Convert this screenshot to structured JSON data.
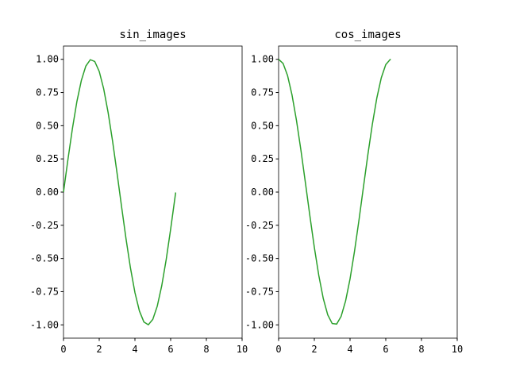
{
  "chart_data": [
    {
      "type": "line",
      "title": "sin_images",
      "x": [
        0,
        0.25,
        0.5,
        0.75,
        1,
        1.25,
        1.5,
        1.75,
        2,
        2.25,
        2.5,
        2.75,
        3,
        3.25,
        3.5,
        3.75,
        4,
        4.25,
        4.5,
        4.75,
        5,
        5.25,
        5.5,
        5.75,
        6,
        6.25,
        6.28
      ],
      "series": [
        {
          "color": "#2ca02c",
          "values": [
            0,
            0.247,
            0.479,
            0.682,
            0.841,
            0.949,
            0.997,
            0.984,
            0.909,
            0.778,
            0.598,
            0.382,
            0.141,
            -0.108,
            -0.351,
            -0.572,
            -0.757,
            -0.895,
            -0.978,
            -0.999,
            -0.959,
            -0.859,
            -0.706,
            -0.508,
            -0.279,
            -0.033,
            -0.003
          ]
        }
      ],
      "xlim": [
        0,
        10
      ],
      "xticks": [
        0,
        2,
        4,
        6,
        8,
        10
      ],
      "ylim": [
        -1.1,
        1.1
      ],
      "yticks": [
        {
          "value": -1,
          "label": "-1.00"
        },
        {
          "value": -0.75,
          "label": "-0.75"
        },
        {
          "value": -0.5,
          "label": "-0.50"
        },
        {
          "value": -0.25,
          "label": "-0.25"
        },
        {
          "value": 0,
          "label": "0.00"
        },
        {
          "value": 0.25,
          "label": "0.25"
        },
        {
          "value": 0.5,
          "label": "0.50"
        },
        {
          "value": 0.75,
          "label": "0.75"
        },
        {
          "value": 1,
          "label": "1.00"
        }
      ]
    },
    {
      "type": "line",
      "title": "cos_images",
      "x": [
        0,
        0.25,
        0.5,
        0.75,
        1,
        1.25,
        1.5,
        1.75,
        2,
        2.25,
        2.5,
        2.75,
        3,
        3.25,
        3.5,
        3.75,
        4,
        4.25,
        4.5,
        4.75,
        5,
        5.25,
        5.5,
        5.75,
        6,
        6.25,
        6.28
      ],
      "series": [
        {
          "color": "#2ca02c",
          "values": [
            1,
            0.969,
            0.878,
            0.732,
            0.54,
            0.315,
            0.071,
            -0.178,
            -0.416,
            -0.628,
            -0.801,
            -0.924,
            -0.99,
            -0.994,
            -0.936,
            -0.82,
            -0.654,
            -0.446,
            -0.211,
            0.038,
            0.284,
            0.512,
            0.709,
            0.861,
            0.96,
            0.999,
            1
          ]
        }
      ],
      "xlim": [
        0,
        10
      ],
      "xticks": [
        0,
        2,
        4,
        6,
        8,
        10
      ],
      "ylim": [
        -1.1,
        1.1
      ],
      "yticks": [
        {
          "value": -1,
          "label": "-1.00"
        },
        {
          "value": -0.75,
          "label": "-0.75"
        },
        {
          "value": -0.5,
          "label": "-0.50"
        },
        {
          "value": -0.25,
          "label": "-0.25"
        },
        {
          "value": 0,
          "label": "0.00"
        },
        {
          "value": 0.25,
          "label": "0.25"
        },
        {
          "value": 0.5,
          "label": "0.50"
        },
        {
          "value": 0.75,
          "label": "0.75"
        },
        {
          "value": 1,
          "label": "1.00"
        }
      ]
    }
  ]
}
